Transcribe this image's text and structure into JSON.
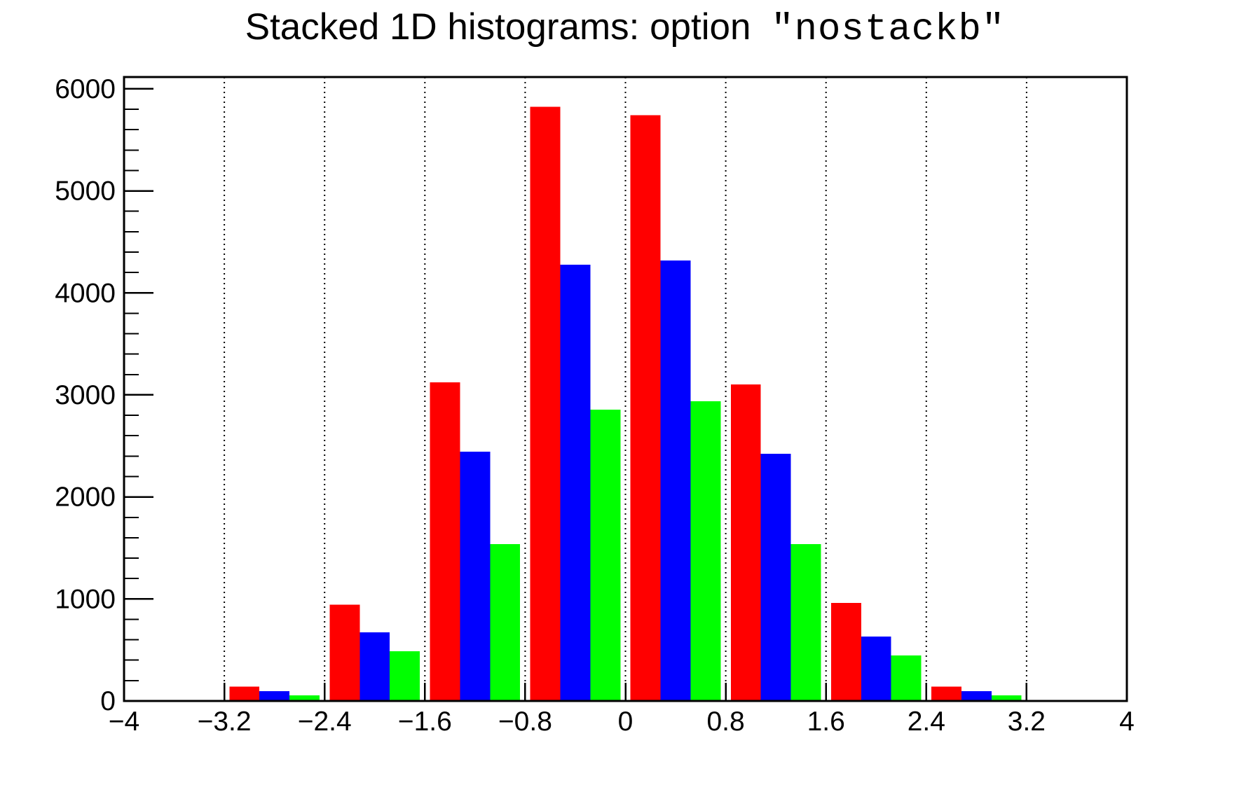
{
  "title": {
    "main": "Stacked 1D histograms: option ",
    "code": "\"nostackb\""
  },
  "chart_data": {
    "type": "bar",
    "subtype": "grouped-histogram-nostackb",
    "title": "Stacked 1D histograms: option \"nostackb\"",
    "xlabel": "",
    "ylabel": "",
    "xlim": [
      -4,
      4
    ],
    "ylim": [
      0,
      6116
    ],
    "bin_edges": [
      -4,
      -3.2,
      -2.4,
      -1.6,
      -0.8,
      0,
      0.8,
      1.6,
      2.4,
      3.2,
      4
    ],
    "series": [
      {
        "name": "red",
        "color": "#ff0000",
        "values": [
          0,
          140,
          944,
          3124,
          5825,
          5741,
          3103,
          961,
          140,
          0
        ]
      },
      {
        "name": "blue",
        "color": "#0000ff",
        "values": [
          0,
          96,
          673,
          2444,
          4277,
          4318,
          2424,
          632,
          96,
          0
        ]
      },
      {
        "name": "green",
        "color": "#00ff00",
        "values": [
          0,
          55,
          487,
          1538,
          2856,
          2938,
          1538,
          446,
          55,
          0
        ]
      }
    ],
    "x_tick_values": [
      -4,
      -3.2,
      -2.4,
      -1.6,
      -0.8,
      0,
      0.8,
      1.6,
      2.4,
      3.2,
      4
    ],
    "x_tick_labels": [
      "−4",
      "−3.2",
      "−2.4",
      "−1.6",
      "−0.8",
      "0",
      "0.8",
      "1.6",
      "2.4",
      "3.2",
      "4"
    ],
    "y_tick_values": [
      0,
      1000,
      2000,
      3000,
      4000,
      5000,
      6000
    ],
    "y_tick_labels": [
      "0",
      "1000",
      "2000",
      "3000",
      "4000",
      "5000",
      "6000"
    ],
    "y_minor_step": 200,
    "grid": "vertical-dotted",
    "legend": "none",
    "bar_group_margin": 0.05,
    "bar_width_fraction": 0.3
  },
  "colors": {
    "background": "#ffffff",
    "axis": "#000000",
    "grid": "#000000",
    "red": "#ff0000",
    "blue": "#0000ff",
    "green": "#00ff00"
  }
}
